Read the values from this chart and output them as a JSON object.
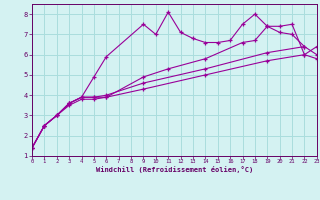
{
  "background_color": "#d4f2f2",
  "grid_color": "#aadddd",
  "line_color": "#990099",
  "marker": "+",
  "xlabel": "Windchill (Refroidissement éolien,°C)",
  "ylim": [
    1,
    8.5
  ],
  "xlim": [
    0,
    23
  ],
  "yticks": [
    1,
    2,
    3,
    4,
    5,
    6,
    7,
    8
  ],
  "xticks": [
    0,
    1,
    2,
    3,
    4,
    5,
    6,
    7,
    8,
    9,
    10,
    11,
    12,
    13,
    14,
    15,
    16,
    17,
    18,
    19,
    20,
    21,
    22,
    23
  ],
  "series": [
    [
      [
        0,
        1.4
      ],
      [
        1,
        2.5
      ],
      [
        2,
        3.0
      ],
      [
        3,
        3.6
      ],
      [
        4,
        3.9
      ],
      [
        5,
        4.9
      ],
      [
        6,
        5.9
      ],
      [
        9,
        7.5
      ],
      [
        10,
        7.0
      ],
      [
        11,
        8.1
      ],
      [
        12,
        7.1
      ],
      [
        13,
        6.8
      ],
      [
        14,
        6.6
      ],
      [
        15,
        6.6
      ],
      [
        16,
        6.7
      ],
      [
        17,
        7.5
      ],
      [
        18,
        8.0
      ],
      [
        19,
        7.4
      ],
      [
        20,
        7.1
      ],
      [
        21,
        7.0
      ],
      [
        22,
        6.4
      ]
    ],
    [
      [
        0,
        1.4
      ],
      [
        1,
        2.5
      ],
      [
        2,
        3.0
      ],
      [
        3,
        3.6
      ],
      [
        4,
        3.9
      ],
      [
        5,
        3.9
      ],
      [
        6,
        3.9
      ],
      [
        9,
        4.9
      ],
      [
        11,
        5.3
      ],
      [
        14,
        5.8
      ],
      [
        17,
        6.6
      ],
      [
        18,
        6.7
      ],
      [
        19,
        7.4
      ],
      [
        20,
        7.4
      ],
      [
        21,
        7.5
      ],
      [
        22,
        6.0
      ],
      [
        23,
        6.4
      ]
    ],
    [
      [
        0,
        1.4
      ],
      [
        1,
        2.5
      ],
      [
        2,
        3.0
      ],
      [
        3,
        3.6
      ],
      [
        4,
        3.9
      ],
      [
        5,
        3.9
      ],
      [
        6,
        4.0
      ],
      [
        9,
        4.6
      ],
      [
        14,
        5.3
      ],
      [
        19,
        6.1
      ],
      [
        22,
        6.4
      ],
      [
        23,
        6.0
      ]
    ],
    [
      [
        0,
        1.4
      ],
      [
        1,
        2.5
      ],
      [
        2,
        3.0
      ],
      [
        3,
        3.5
      ],
      [
        4,
        3.8
      ],
      [
        5,
        3.8
      ],
      [
        6,
        3.9
      ],
      [
        9,
        4.3
      ],
      [
        14,
        5.0
      ],
      [
        19,
        5.7
      ],
      [
        22,
        6.0
      ],
      [
        23,
        5.8
      ]
    ]
  ]
}
